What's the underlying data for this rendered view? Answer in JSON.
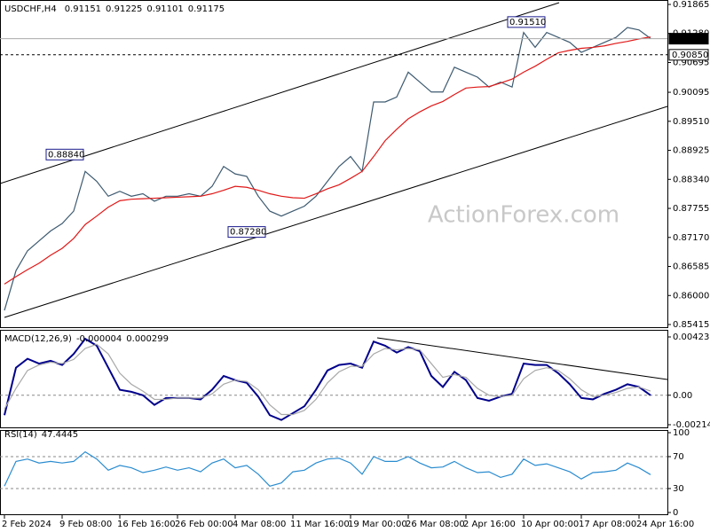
{
  "chart_data": [
    {
      "type": "line",
      "title": "USDCHF,H4",
      "ohlc": [
        0.91151,
        0.91225,
        0.91101,
        0.91175
      ],
      "watermark": "ActionForex.com",
      "categories": [
        "2 Feb 2024",
        null,
        null,
        null,
        null,
        "9 Feb 08:00",
        null,
        null,
        null,
        null,
        "16 Feb 16:00",
        null,
        null,
        null,
        null,
        "26 Feb 00:00",
        null,
        null,
        null,
        null,
        "4 Mar 08:00",
        null,
        null,
        null,
        null,
        "11 Mar 16:00",
        null,
        null,
        null,
        null,
        "19 Mar 00:00",
        null,
        null,
        null,
        null,
        "26 Mar 08:00",
        null,
        null,
        null,
        null,
        "2 Apr 16:00",
        null,
        null,
        null,
        null,
        "10 Apr 00:00",
        null,
        null,
        null,
        null,
        "17 Apr 08:00",
        null,
        null,
        null,
        null,
        "24 Apr 16:00",
        null
      ],
      "series": [
        {
          "color": "#3d5a70",
          "values": [
            0.857,
            0.865,
            0.869,
            0.871,
            0.873,
            0.8745,
            0.877,
            0.885,
            0.883,
            0.88,
            0.881,
            0.88,
            0.8805,
            0.879,
            0.88,
            0.88,
            0.8805,
            0.88,
            0.882,
            0.886,
            0.8845,
            0.884,
            0.88,
            0.877,
            0.876,
            0.877,
            0.878,
            0.88,
            0.883,
            0.886,
            0.888,
            0.885,
            0.899,
            0.899,
            0.9,
            0.905,
            0.903,
            0.901,
            0.901,
            0.906,
            0.905,
            0.904,
            0.902,
            0.903,
            0.902,
            0.913,
            0.91,
            0.913,
            0.912,
            0.911,
            0.909,
            0.91,
            0.911,
            0.912,
            0.914,
            0.9135,
            0.9118
          ]
        },
        {
          "color": "#e01818",
          "values": [
            0.8623,
            0.8638,
            0.8652,
            0.8665,
            0.8681,
            0.8695,
            0.8715,
            0.8743,
            0.876,
            0.8778,
            0.8791,
            0.8794,
            0.8795,
            0.8796,
            0.8797,
            0.8798,
            0.8799,
            0.88,
            0.8805,
            0.8812,
            0.882,
            0.8818,
            0.8812,
            0.8805,
            0.88,
            0.8797,
            0.8796,
            0.8805,
            0.8815,
            0.8823,
            0.8836,
            0.885,
            0.888,
            0.8912,
            0.8935,
            0.8956,
            0.897,
            0.8982,
            0.8991,
            0.9005,
            0.9018,
            0.902,
            0.9021,
            0.9028,
            0.9036,
            0.905,
            0.9062,
            0.9076,
            0.9089,
            0.9094,
            0.9098,
            0.91,
            0.9103,
            0.9108,
            0.9112,
            0.9117,
            0.9121
          ]
        }
      ],
      "ylim": [
        0.85415,
        0.91865
      ],
      "yticks": [
        0.91865,
        {
          "value": 0.9128,
          "label": "0.91280"
        },
        0.90695,
        0.90095,
        {
          "value": 0.8951,
          "label": "0.89510"
        },
        0.88925,
        {
          "value": 0.8834,
          "label": "0.88340"
        },
        0.87755,
        {
          "value": 0.8717,
          "label": "0.87170"
        },
        0.86585,
        {
          "value": 0.86,
          "label": "0.86000"
        },
        0.85415
      ],
      "levels": [
        {
          "value": 0.91175,
          "label": "0.91175"
        },
        {
          "value": 0.9085,
          "label": "0.90850"
        }
      ],
      "annotations": [
        {
          "value": 0.8884,
          "label": "0.88840"
        },
        {
          "value": 0.8728,
          "label": "0.87280"
        },
        {
          "value": 0.9151,
          "label": "0.91510"
        }
      ],
      "grid": false
    },
    {
      "type": "line",
      "title": "MACD(12,26,9)",
      "readout": [
        -4e-06,
        0.000299
      ],
      "series": [
        {
          "color": "#00008b",
          "values": [
            -0.00145,
            0.002,
            0.00265,
            0.0023,
            0.0025,
            0.0022,
            0.003,
            0.0041,
            0.0036,
            0.002,
            0.0004,
            0.00025,
            0.0,
            -0.0007,
            -0.0002,
            -0.0002,
            -0.0002,
            -0.0003,
            0.0004,
            0.0014,
            0.0011,
            0.0009,
            -0.0001,
            -0.00145,
            -0.0018,
            -0.0013,
            -0.0008,
            0.0004,
            0.0018,
            0.0022,
            0.0023,
            0.002,
            0.0039,
            0.0036,
            0.0031,
            0.0035,
            0.0032,
            0.0014,
            0.0006,
            0.0017,
            0.0011,
            -0.0002,
            -0.0004,
            -0.0001,
            0.0001,
            0.0023,
            0.0022,
            0.0022,
            0.0016,
            0.0008,
            -0.0002,
            -0.0003,
            0.0001,
            0.0004,
            0.0008,
            0.0006,
            -4e-06
          ]
        },
        {
          "color": "#a8a8a8",
          "values": [
            -0.001,
            0.0005,
            0.0018,
            0.0022,
            0.0024,
            0.0023,
            0.0026,
            0.0034,
            0.0037,
            0.003,
            0.0016,
            0.0008,
            0.0003,
            -0.0003,
            -0.0003,
            -0.0002,
            -0.0002,
            -0.0002,
            0.0001,
            0.0008,
            0.0011,
            0.001,
            0.0004,
            -0.0007,
            -0.0014,
            -0.0014,
            -0.0011,
            -0.0003,
            0.0009,
            0.0017,
            0.0021,
            0.0021,
            0.003,
            0.0034,
            0.0033,
            0.0034,
            0.0033,
            0.0023,
            0.0013,
            0.0015,
            0.0013,
            0.0005,
            0.0,
            -0.0001,
            0.0,
            0.0012,
            0.0018,
            0.002,
            0.0018,
            0.0012,
            0.0004,
            -0.0001,
            0.0,
            0.0002,
            0.0005,
            0.0006,
            0.000299
          ]
        }
      ],
      "ylim": [
        -0.002142,
        0.004237
      ],
      "yticks": [
        0.004237,
        {
          "value": 0,
          "label": "0.00"
        },
        -0.002142
      ],
      "grid": true
    },
    {
      "type": "line",
      "title": "RSI(14)",
      "readout": [
        47.4445
      ],
      "series": [
        {
          "color": "#2a8cd0",
          "values": [
            33,
            64,
            67,
            62,
            64,
            62,
            64,
            76,
            67,
            53,
            59,
            56,
            50,
            53,
            57,
            53,
            56,
            51,
            62,
            67,
            56,
            59,
            48,
            33,
            37,
            51,
            53,
            62,
            67,
            68,
            62,
            48,
            70,
            64,
            64,
            70,
            62,
            56,
            57,
            64,
            56,
            50,
            51,
            44,
            48,
            67,
            59,
            61,
            56,
            51,
            42,
            50,
            51,
            53,
            62,
            56,
            47.4445
          ]
        }
      ],
      "ylim": [
        0,
        100
      ],
      "yticks": [
        100,
        70,
        30,
        0
      ],
      "grid": true
    }
  ]
}
